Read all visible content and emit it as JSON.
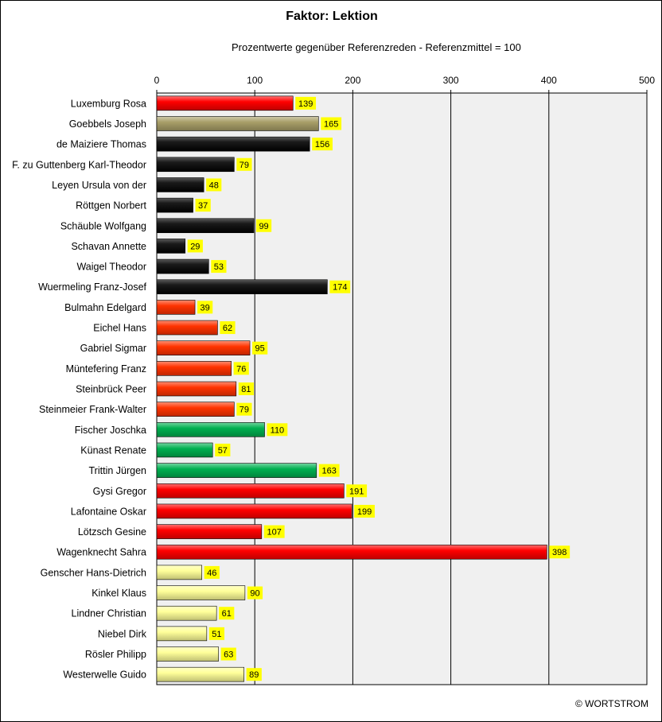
{
  "chart_data": {
    "type": "bar",
    "orientation": "horizontal",
    "title": "Faktor: Lektion",
    "subtitle": "Prozentwerte  gegenüber Referenzreden - Referenzmittel = 100",
    "xlim": [
      0,
      500
    ],
    "xticks": [
      0,
      100,
      200,
      300,
      400,
      500
    ],
    "grid": true,
    "legend": "none",
    "value_label_background": "#ffff00",
    "categories": [
      "Luxemburg Rosa",
      "Goebbels Joseph",
      "de Maiziere Thomas",
      "F. zu Guttenberg Karl-Theodor",
      "Leyen Ursula von der",
      "Röttgen Norbert",
      "Schäuble Wolfgang",
      "Schavan Annette",
      "Waigel Theodor",
      "Wuermeling Franz-Josef",
      "Bulmahn Edelgard",
      "Eichel Hans",
      "Gabriel Sigmar",
      "Müntefering Franz",
      "Steinbrück Peer",
      "Steinmeier Frank-Walter",
      "Fischer Joschka",
      "Künast Renate",
      "Trittin Jürgen",
      "Gysi Gregor",
      "Lafontaine Oskar",
      "Lötzsch Gesine",
      "Wagenknecht Sahra",
      "Genscher Hans-Dietrich",
      "Kinkel Klaus",
      "Lindner Christian",
      "Niebel Dirk",
      "Rösler Philipp",
      "Westerwelle Guido"
    ],
    "values": [
      139,
      165,
      156,
      79,
      48,
      37,
      99,
      29,
      53,
      174,
      39,
      62,
      95,
      76,
      81,
      79,
      110,
      57,
      163,
      191,
      199,
      107,
      398,
      46,
      90,
      61,
      51,
      63,
      89
    ],
    "bar_colors": [
      "#ff0000",
      "#a89e68",
      "#000000",
      "#000000",
      "#000000",
      "#000000",
      "#000000",
      "#000000",
      "#000000",
      "#000000",
      "#ff3300",
      "#ff3300",
      "#ff3300",
      "#ff3300",
      "#ff3300",
      "#ff3300",
      "#00b050",
      "#00b050",
      "#00b050",
      "#ff0000",
      "#ff0000",
      "#ff0000",
      "#ff0000",
      "#ffff99",
      "#ffff99",
      "#ffff99",
      "#ffff99",
      "#ffff99",
      "#ffff99"
    ]
  },
  "footer": {
    "copyright": "© WORTSTROM"
  }
}
